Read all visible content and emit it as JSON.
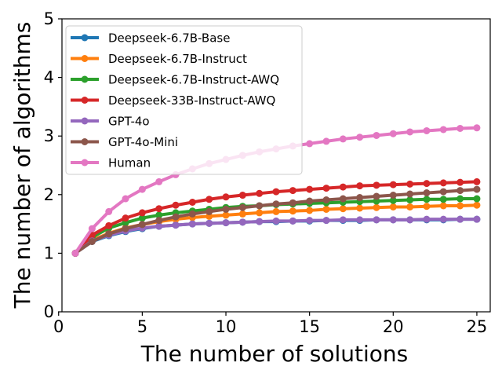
{
  "chart_data": {
    "type": "line",
    "title": "",
    "xlabel": "The number of solutions",
    "ylabel": "The number of algorithms",
    "xlim": [
      0.2,
      25.8
    ],
    "ylim": [
      0,
      5
    ],
    "xticks": [
      0,
      5,
      10,
      15,
      20,
      25
    ],
    "yticks": [
      0,
      1,
      2,
      3,
      4,
      5
    ],
    "grid": false,
    "legend_position": "top-left",
    "x": [
      1,
      2,
      3,
      4,
      5,
      6,
      7,
      8,
      9,
      10,
      11,
      12,
      13,
      14,
      15,
      16,
      17,
      18,
      19,
      20,
      21,
      22,
      23,
      24,
      25
    ],
    "series": [
      {
        "name": "Deepseek-6.7B-Base",
        "color": "#1f77b4",
        "values": [
          1.0,
          1.2,
          1.3,
          1.37,
          1.42,
          1.46,
          1.48,
          1.5,
          1.51,
          1.52,
          1.53,
          1.54,
          1.54,
          1.55,
          1.55,
          1.56,
          1.56,
          1.56,
          1.57,
          1.57,
          1.57,
          1.57,
          1.57,
          1.58,
          1.58
        ]
      },
      {
        "name": "Deepseek-6.7B-Instruct",
        "color": "#ff7f0e",
        "values": [
          1.0,
          1.22,
          1.34,
          1.43,
          1.49,
          1.54,
          1.58,
          1.61,
          1.63,
          1.65,
          1.67,
          1.69,
          1.71,
          1.72,
          1.73,
          1.75,
          1.76,
          1.77,
          1.78,
          1.79,
          1.79,
          1.8,
          1.81,
          1.81,
          1.82
        ]
      },
      {
        "name": "Deepseek-6.7B-Instruct-AWQ",
        "color": "#2ca02c",
        "values": [
          1.0,
          1.27,
          1.43,
          1.52,
          1.6,
          1.65,
          1.69,
          1.72,
          1.75,
          1.78,
          1.8,
          1.81,
          1.83,
          1.84,
          1.85,
          1.86,
          1.87,
          1.88,
          1.89,
          1.9,
          1.91,
          1.92,
          1.92,
          1.93,
          1.93
        ]
      },
      {
        "name": "Deepseek-33B-Instruct-AWQ",
        "color": "#d62728",
        "values": [
          1.0,
          1.31,
          1.47,
          1.6,
          1.69,
          1.76,
          1.82,
          1.87,
          1.92,
          1.96,
          1.99,
          2.02,
          2.05,
          2.07,
          2.09,
          2.11,
          2.13,
          2.15,
          2.16,
          2.17,
          2.18,
          2.19,
          2.2,
          2.21,
          2.22
        ]
      },
      {
        "name": "GPT-4o",
        "color": "#9467bd",
        "values": [
          1.0,
          1.21,
          1.31,
          1.38,
          1.43,
          1.46,
          1.48,
          1.5,
          1.51,
          1.52,
          1.53,
          1.54,
          1.55,
          1.55,
          1.56,
          1.56,
          1.57,
          1.57,
          1.57,
          1.57,
          1.57,
          1.58,
          1.58,
          1.58,
          1.58
        ]
      },
      {
        "name": "GPT-4o-Mini",
        "color": "#8c564b",
        "values": [
          1.0,
          1.2,
          1.33,
          1.42,
          1.49,
          1.56,
          1.62,
          1.67,
          1.71,
          1.75,
          1.78,
          1.81,
          1.84,
          1.86,
          1.89,
          1.91,
          1.93,
          1.95,
          1.97,
          1.99,
          2.01,
          2.03,
          2.05,
          2.07,
          2.09
        ]
      },
      {
        "name": "Human",
        "color": "#e377c2",
        "values": [
          1.0,
          1.42,
          1.71,
          1.93,
          2.09,
          2.22,
          2.34,
          2.44,
          2.53,
          2.6,
          2.67,
          2.73,
          2.78,
          2.83,
          2.87,
          2.91,
          2.95,
          2.98,
          3.01,
          3.04,
          3.07,
          3.09,
          3.11,
          3.13,
          3.14
        ]
      }
    ]
  }
}
